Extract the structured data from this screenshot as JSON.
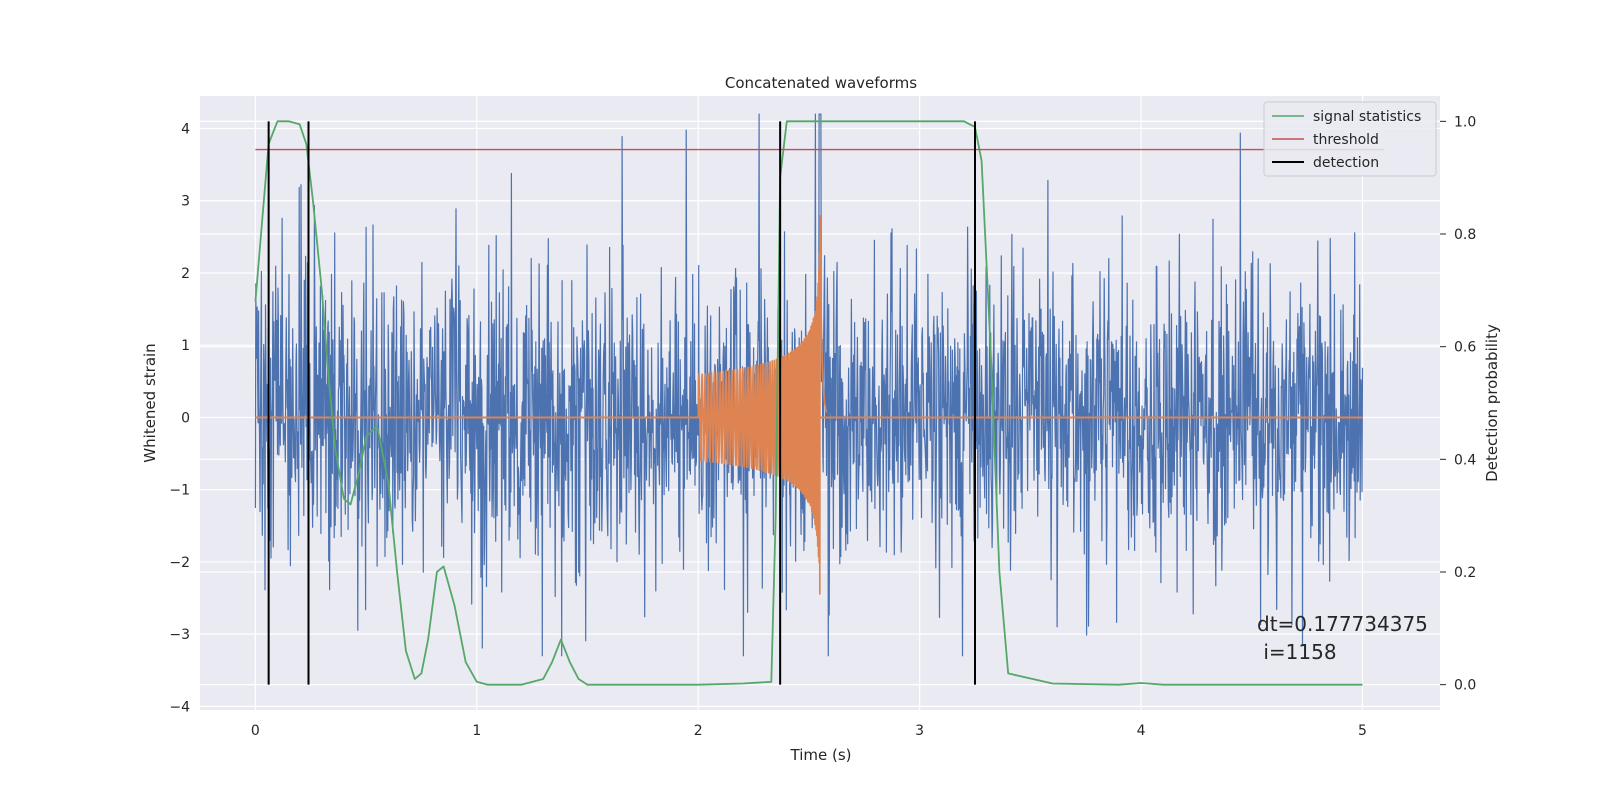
{
  "chart_data": {
    "type": "line",
    "title": "Concatenated waveforms",
    "xlabel": "Time (s)",
    "ylabel": "Whitened strain",
    "y2label": "Detection probability",
    "xlim": [
      -0.25,
      5.35
    ],
    "ylim": [
      -4.05,
      4.45
    ],
    "y2lim": [
      -0.045,
      1.045
    ],
    "xticks": [
      0,
      1,
      2,
      3,
      4,
      5
    ],
    "yticks": [
      -4,
      -3,
      -2,
      -1,
      0,
      1,
      2,
      3,
      4
    ],
    "y2ticks": [
      "0.0",
      "0.2",
      "0.4",
      "0.6",
      "0.8",
      "1.0"
    ],
    "grid": true,
    "legend_position": "top-right",
    "legend": [
      "signal statistics",
      "threshold",
      "detection"
    ],
    "colors": {
      "noise": "#4c72b0",
      "signal": "#dd8452",
      "statistic": "#55a868",
      "threshold": "#c44e52",
      "detection": "#000000",
      "background": "#eaeaf2"
    },
    "whitened_strain": {
      "x_range": [
        0,
        5
      ],
      "typical_amplitude": 1.0,
      "peak_range": [
        -3.3,
        4.2
      ]
    },
    "injected_signal": {
      "start_time": 2.0,
      "merger_time": 2.55,
      "initial_amplitude": 0.6,
      "peak_amplitude": 3.0
    },
    "signal_statistics": {
      "x": [
        0,
        0.03,
        0.06,
        0.1,
        0.15,
        0.2,
        0.23,
        0.26,
        0.3,
        0.33,
        0.36,
        0.4,
        0.43,
        0.47,
        0.5,
        0.55,
        0.6,
        0.64,
        0.68,
        0.72,
        0.75,
        0.78,
        0.82,
        0.85,
        0.9,
        0.95,
        1.0,
        1.05,
        1.1,
        1.2,
        1.3,
        1.34,
        1.38,
        1.42,
        1.46,
        1.5,
        1.6,
        2.0,
        2.2,
        2.33,
        2.35,
        2.37,
        2.4,
        2.6,
        3.0,
        3.2,
        3.25,
        3.28,
        3.32,
        3.36,
        3.4,
        3.6,
        3.9,
        4.0,
        4.1,
        4.5,
        5.0
      ],
      "y": [
        0.68,
        0.82,
        0.96,
        1.0,
        1.0,
        0.995,
        0.96,
        0.86,
        0.7,
        0.55,
        0.42,
        0.33,
        0.32,
        0.38,
        0.44,
        0.46,
        0.36,
        0.2,
        0.06,
        0.01,
        0.02,
        0.08,
        0.2,
        0.21,
        0.14,
        0.04,
        0.005,
        0.0,
        0.0,
        0.0,
        0.01,
        0.04,
        0.08,
        0.04,
        0.01,
        0.0,
        0.0,
        0.0,
        0.002,
        0.005,
        0.3,
        0.9,
        1.0,
        1.0,
        1.0,
        1.0,
        0.99,
        0.93,
        0.6,
        0.2,
        0.02,
        0.002,
        0.0,
        0.003,
        0.0,
        0.0,
        0.0
      ]
    },
    "threshold": {
      "value": 0.95,
      "x_range": [
        0,
        5.0
      ]
    },
    "detections": [
      0.06,
      0.24,
      2.37,
      3.25
    ],
    "annotation": {
      "line1": "dt=0.177734375",
      "line2": " i=1158"
    }
  }
}
